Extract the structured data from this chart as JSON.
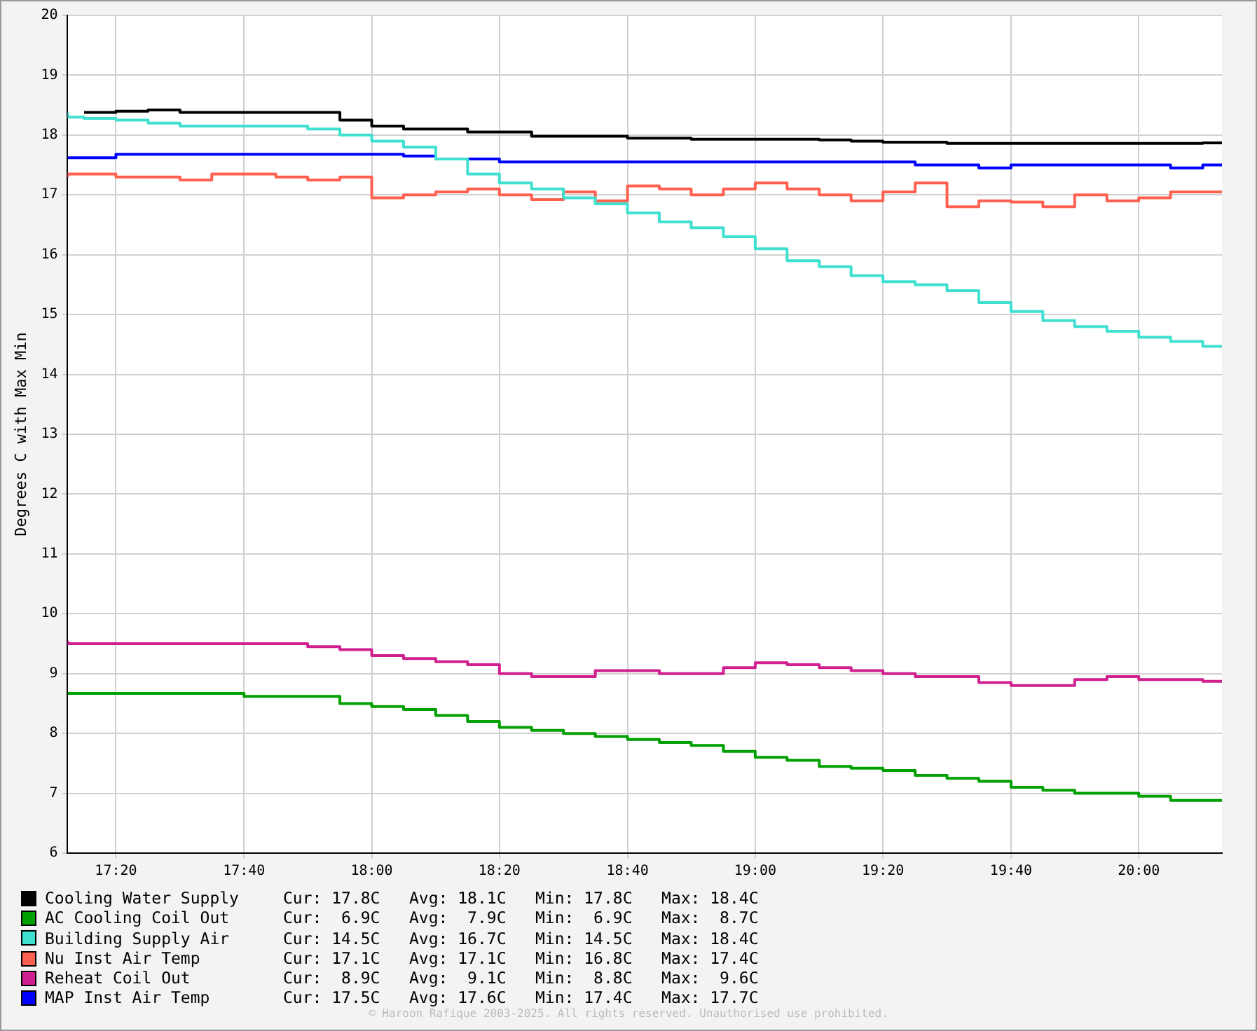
{
  "chart_data": {
    "type": "step",
    "ylabel": "Degrees C with Max Min",
    "xlim": [
      17.207,
      20.217
    ],
    "xticks": [
      {
        "value": 17.333,
        "label": "17:20"
      },
      {
        "value": 17.667,
        "label": "17:40"
      },
      {
        "value": 18,
        "label": "18:00"
      },
      {
        "value": 18.333,
        "label": "18:20"
      },
      {
        "value": 18.667,
        "label": "18:40"
      },
      {
        "value": 19,
        "label": "19:00"
      },
      {
        "value": 19.333,
        "label": "19:20"
      },
      {
        "value": 19.667,
        "label": "19:40"
      },
      {
        "value": 20,
        "label": "20:00"
      }
    ],
    "ylim": [
      6,
      20
    ],
    "yticks": [
      6,
      7,
      8,
      9,
      10,
      11,
      12,
      13,
      14,
      15,
      16,
      17,
      18,
      19,
      20
    ],
    "grid": true,
    "legend": "bottom",
    "x": [
      17.207,
      17.25,
      17.333,
      17.417,
      17.5,
      17.583,
      17.667,
      17.75,
      17.833,
      17.917,
      18,
      18.083,
      18.167,
      18.25,
      18.333,
      18.417,
      18.5,
      18.583,
      18.667,
      18.75,
      18.833,
      18.917,
      19,
      19.083,
      19.167,
      19.25,
      19.333,
      19.417,
      19.5,
      19.583,
      19.667,
      19.75,
      19.833,
      19.917,
      20,
      20.083,
      20.167,
      20.217
    ],
    "series": [
      {
        "name": "Cooling Water Supply",
        "color": "#000000",
        "values": [
          null,
          18.38,
          18.38,
          18.4,
          18.42,
          18.38,
          18.38,
          18.38,
          18.38,
          18.38,
          18.25,
          18.15,
          18.1,
          18.1,
          18.05,
          18.05,
          17.98,
          17.98,
          17.98,
          17.95,
          17.95,
          17.93,
          17.93,
          17.93,
          17.93,
          17.92,
          17.9,
          17.88,
          17.88,
          17.86,
          17.86,
          17.86,
          17.86,
          17.86,
          17.86,
          17.86,
          17.86,
          17.87
        ]
      },
      {
        "name": "AC Cooling Coil Out",
        "color": "#00a000",
        "values": [
          8.67,
          8.67,
          8.67,
          8.67,
          8.67,
          8.67,
          8.67,
          8.62,
          8.62,
          8.62,
          8.5,
          8.45,
          8.4,
          8.3,
          8.2,
          8.1,
          8.05,
          8.0,
          7.95,
          7.9,
          7.85,
          7.8,
          7.7,
          7.6,
          7.55,
          7.45,
          7.42,
          7.38,
          7.3,
          7.25,
          7.2,
          7.1,
          7.05,
          7.0,
          7.0,
          6.95,
          6.88,
          6.88
        ]
      },
      {
        "name": "Building Supply Air",
        "color": "#40e0d0",
        "values": [
          18.38,
          18.3,
          18.28,
          18.25,
          18.2,
          18.15,
          18.15,
          18.15,
          18.15,
          18.1,
          18.0,
          17.9,
          17.8,
          17.6,
          17.35,
          17.2,
          17.1,
          16.95,
          16.85,
          16.7,
          16.55,
          16.45,
          16.3,
          16.1,
          15.9,
          15.8,
          15.65,
          15.55,
          15.5,
          15.4,
          15.2,
          15.05,
          14.9,
          14.8,
          14.72,
          14.62,
          14.55,
          14.47
        ]
      },
      {
        "name": "Nu Inst Air Temp",
        "color": "#ff6050",
        "values": [
          17.3,
          17.35,
          17.35,
          17.3,
          17.3,
          17.25,
          17.35,
          17.35,
          17.3,
          17.25,
          17.3,
          16.95,
          17.0,
          17.05,
          17.1,
          17.0,
          16.92,
          17.05,
          16.9,
          17.15,
          17.1,
          17.0,
          17.1,
          17.2,
          17.1,
          17.0,
          16.9,
          17.05,
          17.2,
          16.8,
          16.9,
          16.88,
          16.8,
          17.0,
          16.9,
          16.95,
          17.05,
          17.05
        ]
      },
      {
        "name": "Reheat Coil Out",
        "color": "#d02090",
        "values": [
          9.55,
          9.5,
          9.5,
          9.5,
          9.5,
          9.5,
          9.5,
          9.5,
          9.5,
          9.45,
          9.4,
          9.3,
          9.25,
          9.2,
          9.15,
          9.0,
          8.95,
          8.95,
          9.05,
          9.05,
          9.0,
          9.0,
          9.1,
          9.18,
          9.15,
          9.1,
          9.05,
          9.0,
          8.95,
          8.95,
          8.85,
          8.8,
          8.8,
          8.9,
          8.95,
          8.9,
          8.9,
          8.87
        ]
      },
      {
        "name": "MAP Inst Air Temp",
        "color": "#0000ff",
        "values": [
          17.62,
          17.62,
          17.62,
          17.68,
          17.68,
          17.68,
          17.68,
          17.68,
          17.68,
          17.68,
          17.68,
          17.68,
          17.65,
          17.6,
          17.6,
          17.55,
          17.55,
          17.55,
          17.55,
          17.55,
          17.55,
          17.55,
          17.55,
          17.55,
          17.55,
          17.55,
          17.55,
          17.55,
          17.5,
          17.5,
          17.45,
          17.5,
          17.5,
          17.5,
          17.5,
          17.5,
          17.45,
          17.5
        ]
      }
    ],
    "annotations": [
      "Cur: 17.8C   Avg: 18.1C   Min: 17.8C   Max: 18.4C",
      "Cur:  6.9C   Avg:  7.9C   Min:  6.9C   Max:  8.7C",
      "Cur: 14.5C   Avg: 16.7C   Min: 14.5C   Max: 18.4C",
      "Cur: 17.1C   Avg: 17.1C   Min: 16.8C   Max: 17.4C",
      "Cur:  8.9C   Avg:  9.1C   Min:  8.8C   Max:  9.6C",
      "Cur: 17.5C   Avg: 17.6C   Min: 17.4C   Max: 17.7C",
      "© Haroon Rafique 2003-2025. All rights reserved. Unauthorised use prohibited."
    ]
  }
}
